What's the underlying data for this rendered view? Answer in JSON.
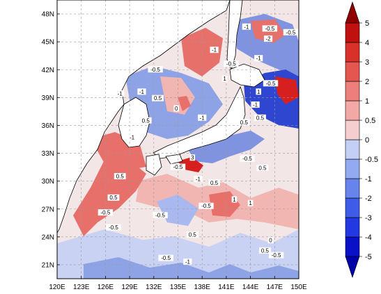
{
  "map": {
    "lon_ticks": [
      "120E",
      "123E",
      "126E",
      "129E",
      "132E",
      "135E",
      "138E",
      "141E",
      "144E",
      "147E",
      "150E"
    ],
    "lat_ticks": [
      "21N",
      "24N",
      "27N",
      "30N",
      "33N",
      "36N",
      "39N",
      "42N",
      "45N",
      "48N"
    ],
    "extent": {
      "lon": [
        120,
        150
      ],
      "lat": [
        19.5,
        49.5
      ]
    },
    "grid": true,
    "land_color": "#ffffff",
    "coastline_color": "#000000",
    "field_colors": {
      "neutral": "#f3e6e6",
      "pos_light": "#f2b6b2",
      "pos_mid": "#e8706b",
      "pos_strong": "#d62020",
      "neg_light": "#c9d2f2",
      "neg_mid": "#7f93e0",
      "neg_strong": "#2f46d0"
    },
    "contour_labels": [
      {
        "text": "-1",
        "lon": 136.2,
        "lat": 21.3
      },
      {
        "text": "-0.5",
        "lon": 133.5,
        "lat": 21.7
      },
      {
        "text": "-0.5",
        "lon": 147.2,
        "lat": 22.0
      },
      {
        "text": "0.5",
        "lon": 145.8,
        "lat": 22.5
      },
      {
        "text": "-0.5",
        "lon": 127.0,
        "lat": 25.0
      },
      {
        "text": "0.5",
        "lon": 136.8,
        "lat": 24.2
      },
      {
        "text": "0",
        "lon": 146.5,
        "lat": 23.6
      },
      {
        "text": "-0.5",
        "lon": 132.8,
        "lat": 26.3
      },
      {
        "text": "-0.5",
        "lon": 138.5,
        "lat": 27.3
      },
      {
        "text": "1",
        "lon": 142.0,
        "lat": 28.0
      },
      {
        "text": "0.5",
        "lon": 127.0,
        "lat": 28.2
      },
      {
        "text": "-0.5",
        "lon": 126.0,
        "lat": 26.6
      },
      {
        "text": "1",
        "lon": 144.0,
        "lat": 27.6
      },
      {
        "text": "-0.5",
        "lon": 135.0,
        "lat": 31.5
      },
      {
        "text": "0.5",
        "lon": 139.5,
        "lat": 29.8
      },
      {
        "text": "0.5",
        "lon": 127.8,
        "lat": 30.5
      },
      {
        "text": "-0.5",
        "lon": 143.6,
        "lat": 32.4
      },
      {
        "text": "-1",
        "lon": 137.5,
        "lat": 30.2
      },
      {
        "text": "0.5",
        "lon": 145.5,
        "lat": 31.4
      },
      {
        "text": "3",
        "lon": 136.8,
        "lat": 32.5
      },
      {
        "text": "-1",
        "lon": 129.3,
        "lat": 34.7
      },
      {
        "text": "0.5",
        "lon": 131.0,
        "lat": 36.5
      },
      {
        "text": "-1",
        "lon": 138.0,
        "lat": 36.8
      },
      {
        "text": "0.5",
        "lon": 143.2,
        "lat": 36.3
      },
      {
        "text": "0.5",
        "lon": 132.5,
        "lat": 38.9
      },
      {
        "text": "-1",
        "lon": 130.5,
        "lat": 39.6
      },
      {
        "text": "-1",
        "lon": 127.8,
        "lat": 39.4
      },
      {
        "text": "0",
        "lon": 134.8,
        "lat": 37.8
      },
      {
        "text": "-0.5",
        "lon": 132.2,
        "lat": 42.0
      },
      {
        "text": "-1",
        "lon": 139.5,
        "lat": 44.1
      },
      {
        "text": "1",
        "lon": 140.8,
        "lat": 41.0
      },
      {
        "text": "-0.5",
        "lon": 141.6,
        "lat": 42.6
      },
      {
        "text": "-0.5",
        "lon": 146.4,
        "lat": 46.4
      },
      {
        "text": "-1",
        "lon": 143.5,
        "lat": 46.6
      },
      {
        "text": "-1",
        "lon": 145.0,
        "lat": 43.2
      },
      {
        "text": "-0.5",
        "lon": 146.5,
        "lat": 40.5
      },
      {
        "text": "-1",
        "lon": 144.6,
        "lat": 38.2
      },
      {
        "text": "-2",
        "lon": 146.2,
        "lat": 45.3
      },
      {
        "text": "-0.5",
        "lon": 149.0,
        "lat": 46.0
      },
      {
        "text": "1",
        "lon": 145.0,
        "lat": 39.6
      },
      {
        "text": "0.5",
        "lon": 145.2,
        "lat": 36.8
      }
    ]
  },
  "colorbar": {
    "levels": [
      "-5",
      "-4",
      "-3",
      "-2",
      "-1",
      "-0.5",
      "0",
      "0.5",
      "1",
      "2",
      "3",
      "4",
      "5"
    ],
    "colors": [
      "#0a10c8",
      "#2238e0",
      "#3f5ce8",
      "#6784ec",
      "#93a9f0",
      "#c4cff5",
      "#f5ced0",
      "#f2a9a6",
      "#ec7f7b",
      "#e45650",
      "#d9302a",
      "#c01010"
    ],
    "under_color": "#0000a8",
    "over_color": "#8e0000"
  }
}
